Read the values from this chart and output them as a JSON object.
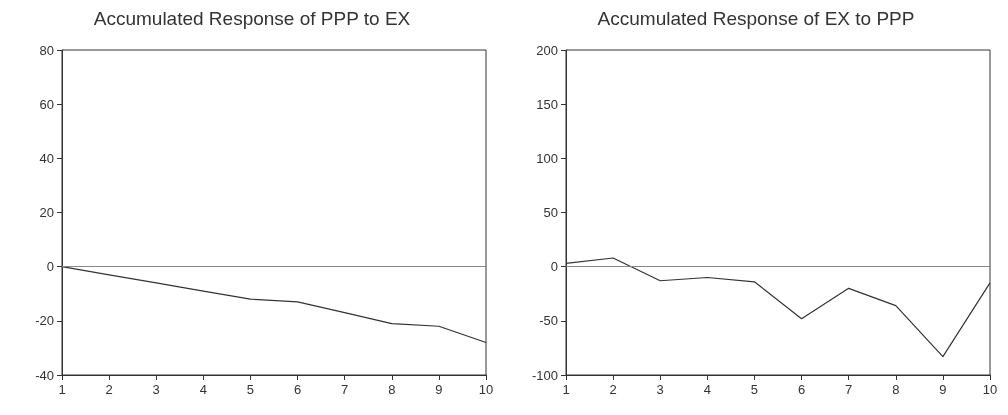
{
  "chart_data": [
    {
      "type": "line",
      "title": "Accumulated Response of PPP to EX",
      "x": [
        1,
        2,
        3,
        4,
        5,
        6,
        7,
        8,
        9,
        10
      ],
      "xlim": [
        1,
        10
      ],
      "xticks": [
        1,
        2,
        3,
        4,
        5,
        6,
        7,
        8,
        9,
        10
      ],
      "ylim": [
        -40,
        80
      ],
      "yticks": [
        -40,
        -20,
        0,
        20,
        40,
        60,
        80
      ],
      "series": [
        {
          "color": "#333333",
          "values": [
            0,
            -3,
            -6,
            -9,
            -12,
            -13,
            -17,
            -21,
            -22,
            -28
          ]
        }
      ],
      "ref_lines": [
        {
          "axis": "y",
          "value": 0,
          "color": "#888888"
        }
      ],
      "grid": false,
      "marker": "none",
      "line_style": "solid"
    },
    {
      "type": "line",
      "title": "Accumulated Response of EX to PPP",
      "x": [
        1,
        2,
        3,
        4,
        5,
        6,
        7,
        8,
        9,
        10
      ],
      "xlim": [
        1,
        10
      ],
      "xticks": [
        1,
        2,
        3,
        4,
        5,
        6,
        7,
        8,
        9,
        10
      ],
      "ylim": [
        -100,
        200
      ],
      "yticks": [
        -100,
        -50,
        0,
        50,
        100,
        150,
        200
      ],
      "series": [
        {
          "color": "#333333",
          "values": [
            3,
            8,
            -13,
            -10,
            -14,
            -48,
            -20,
            -36,
            -83,
            -15
          ]
        }
      ],
      "ref_lines": [
        {
          "axis": "y",
          "value": 0,
          "color": "#888888"
        }
      ],
      "grid": false,
      "marker": "none",
      "line_style": "solid"
    }
  ]
}
